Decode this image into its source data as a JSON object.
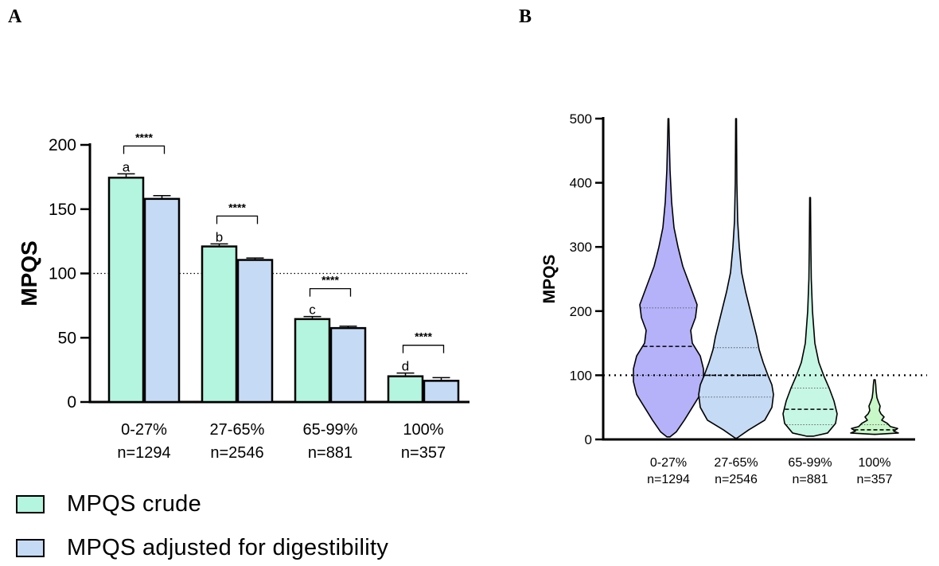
{
  "panels": {
    "a_letter": "A",
    "b_letter": "B"
  },
  "chart_data": [
    {
      "type": "bar",
      "panel": "A",
      "ylabel": "MPQS",
      "ylim": [
        0,
        200
      ],
      "yticks": [
        0,
        50,
        100,
        150,
        200
      ],
      "reference_line": 100,
      "categories": [
        "0-27%",
        "27-65%",
        "65-99%",
        "100%"
      ],
      "category_n": [
        "n=1294",
        "n=2546",
        "n=881",
        "n=357"
      ],
      "series": [
        {
          "name": "MPQS crude",
          "color": "#b3f5df",
          "values": [
            174.5,
            121,
            64.5,
            20
          ],
          "errors": [
            3,
            2,
            2,
            2.5
          ]
        },
        {
          "name": "MPQS adjusted for digestibility",
          "color": "#c5daf5",
          "values": [
            158,
            110.5,
            57.5,
            16.5
          ],
          "errors": [
            2.5,
            1.5,
            1.5,
            2.5
          ]
        }
      ],
      "group_letters": [
        "a",
        "b",
        "c",
        "d"
      ],
      "significance": [
        "****",
        "****",
        "****",
        "****"
      ]
    },
    {
      "type": "violin",
      "panel": "B",
      "ylabel": "MPQS",
      "ylim": [
        0,
        500
      ],
      "yticks": [
        0,
        100,
        200,
        300,
        400,
        500
      ],
      "reference_line": 100,
      "categories": [
        "0-27%",
        "27-65%",
        "65-99%",
        "100%"
      ],
      "category_n": [
        "n=1294",
        "n=2546",
        "n=881",
        "n=357"
      ],
      "colors": [
        "#b5b2fa",
        "#c5daf5",
        "#c6f7e4",
        "#c8f7c8"
      ],
      "medians": [
        145,
        100,
        47,
        15
      ],
      "quartiles": [
        [
          100,
          205
        ],
        [
          66,
          143
        ],
        [
          23,
          80
        ],
        [
          7,
          23
        ]
      ],
      "ranges": [
        [
          4,
          500
        ],
        [
          2,
          500
        ],
        [
          5,
          377
        ],
        [
          8,
          93
        ]
      ]
    }
  ],
  "legend": [
    {
      "label": "MPQS crude",
      "color": "#b3f5df"
    },
    {
      "label": "MPQS adjusted for digestibility",
      "color": "#c5daf5"
    }
  ]
}
